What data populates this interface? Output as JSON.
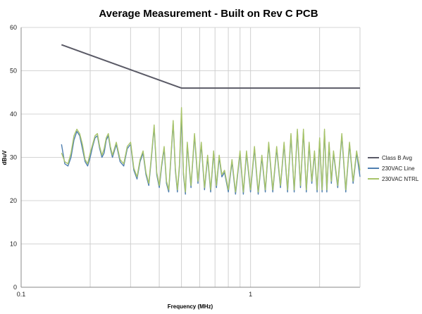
{
  "chart_data": {
    "type": "line",
    "title": "Average Measurement - Built on Rev C PCB",
    "xlabel": "Frequency (MHz)",
    "ylabel": "dBuV",
    "x_scale": "log",
    "xlim": [
      0.1,
      3
    ],
    "ylim": [
      0,
      60
    ],
    "x_tick_labels": [
      "0.1",
      "1"
    ],
    "y_ticks": [
      0,
      10,
      20,
      30,
      40,
      50,
      60
    ],
    "grid": "vertical minor log gridlines, horizontal gridlines at each y tick",
    "legend_position": "right",
    "series": [
      {
        "name": "Class B Avg",
        "color": "#5a5a66",
        "x": [
          0.15,
          0.5,
          3
        ],
        "y": [
          56,
          46,
          46
        ]
      },
      {
        "name": "230VAC Line",
        "color": "#4f7fb0",
        "x": [
          0.15,
          0.155,
          0.16,
          0.165,
          0.17,
          0.175,
          0.18,
          0.185,
          0.19,
          0.195,
          0.2,
          0.205,
          0.21,
          0.215,
          0.22,
          0.225,
          0.23,
          0.235,
          0.24,
          0.245,
          0.25,
          0.26,
          0.27,
          0.28,
          0.29,
          0.3,
          0.31,
          0.32,
          0.33,
          0.34,
          0.35,
          0.36,
          0.37,
          0.38,
          0.39,
          0.4,
          0.41,
          0.42,
          0.43,
          0.44,
          0.45,
          0.46,
          0.47,
          0.48,
          0.49,
          0.5,
          0.51,
          0.52,
          0.53,
          0.55,
          0.57,
          0.59,
          0.61,
          0.63,
          0.65,
          0.67,
          0.69,
          0.71,
          0.73,
          0.75,
          0.77,
          0.8,
          0.83,
          0.86,
          0.9,
          0.93,
          0.96,
          1.0,
          1.04,
          1.08,
          1.12,
          1.16,
          1.2,
          1.25,
          1.3,
          1.35,
          1.4,
          1.45,
          1.5,
          1.55,
          1.6,
          1.65,
          1.7,
          1.75,
          1.8,
          1.85,
          1.9,
          1.95,
          2.0,
          2.05,
          2.1,
          2.15,
          2.2,
          2.25,
          2.3,
          2.4,
          2.5,
          2.6,
          2.7,
          2.8,
          2.9,
          3.0
        ],
        "y": [
          33,
          28.5,
          28,
          30,
          34,
          36,
          35,
          32,
          29,
          28,
          30,
          32.5,
          34.5,
          35,
          32,
          30,
          31,
          34,
          35,
          32,
          30,
          33,
          29,
          28,
          32,
          33,
          27,
          25,
          29,
          31,
          26,
          23.5,
          30,
          37,
          26,
          23,
          28,
          32,
          24,
          22,
          30,
          38,
          27,
          22,
          28,
          40,
          26,
          21.5,
          33,
          23,
          35,
          24,
          33,
          22.5,
          30,
          22,
          31,
          23,
          30,
          25.5,
          26.5,
          22,
          29,
          21.5,
          31,
          21.5,
          31,
          22,
          32,
          21.5,
          30,
          22,
          33,
          22,
          32,
          23,
          33,
          22,
          35,
          22,
          36,
          23,
          36,
          22,
          33,
          24,
          31,
          22,
          34,
          22,
          36,
          22,
          33,
          24,
          31,
          23,
          35,
          22,
          33,
          24,
          31,
          25.5
        ]
      },
      {
        "name": "230VAC NTRL",
        "color": "#a8c46a",
        "x": [
          0.15,
          0.155,
          0.16,
          0.165,
          0.17,
          0.175,
          0.18,
          0.185,
          0.19,
          0.195,
          0.2,
          0.205,
          0.21,
          0.215,
          0.22,
          0.225,
          0.23,
          0.235,
          0.24,
          0.245,
          0.25,
          0.26,
          0.27,
          0.28,
          0.29,
          0.3,
          0.31,
          0.32,
          0.33,
          0.34,
          0.35,
          0.36,
          0.37,
          0.38,
          0.39,
          0.4,
          0.41,
          0.42,
          0.43,
          0.44,
          0.45,
          0.46,
          0.47,
          0.48,
          0.49,
          0.5,
          0.51,
          0.52,
          0.53,
          0.55,
          0.57,
          0.59,
          0.61,
          0.63,
          0.65,
          0.67,
          0.69,
          0.71,
          0.73,
          0.75,
          0.77,
          0.8,
          0.83,
          0.86,
          0.9,
          0.93,
          0.96,
          1.0,
          1.04,
          1.08,
          1.12,
          1.16,
          1.2,
          1.25,
          1.3,
          1.35,
          1.4,
          1.45,
          1.5,
          1.55,
          1.6,
          1.65,
          1.7,
          1.75,
          1.8,
          1.85,
          1.9,
          1.95,
          2.0,
          2.05,
          2.1,
          2.15,
          2.2,
          2.25,
          2.3,
          2.4,
          2.5,
          2.6,
          2.7,
          2.8,
          2.9,
          3.0
        ],
        "y": [
          31,
          29,
          28.5,
          31,
          35,
          36.5,
          35.5,
          33,
          29.5,
          28.5,
          31,
          33,
          35,
          35.5,
          32.5,
          30.5,
          32,
          34.5,
          35.5,
          32.5,
          30.5,
          33.5,
          29.5,
          28.5,
          32.5,
          33.5,
          27.5,
          25.5,
          29.5,
          31.5,
          26.5,
          24,
          30.5,
          37.5,
          26.5,
          23.5,
          28.5,
          32.5,
          24.5,
          22.5,
          30.5,
          38.5,
          27.5,
          22.5,
          28.5,
          41.5,
          26.5,
          22,
          33.5,
          23.5,
          35.5,
          24.5,
          33.5,
          23,
          30.5,
          22.5,
          31.5,
          23.5,
          30.5,
          26,
          27,
          22.5,
          29.5,
          22,
          31.5,
          22,
          31.5,
          22.5,
          32.5,
          22,
          30.5,
          22.5,
          33.5,
          22.5,
          32.5,
          23.5,
          33.5,
          22.5,
          35.5,
          22.5,
          36.5,
          23.5,
          36.5,
          22.5,
          33.5,
          24.5,
          31.5,
          22.5,
          34.5,
          22.5,
          36.5,
          22.5,
          33.5,
          24.5,
          31.5,
          23.5,
          35.5,
          22.5,
          33.5,
          24.5,
          31.5,
          27
        ]
      }
    ]
  }
}
